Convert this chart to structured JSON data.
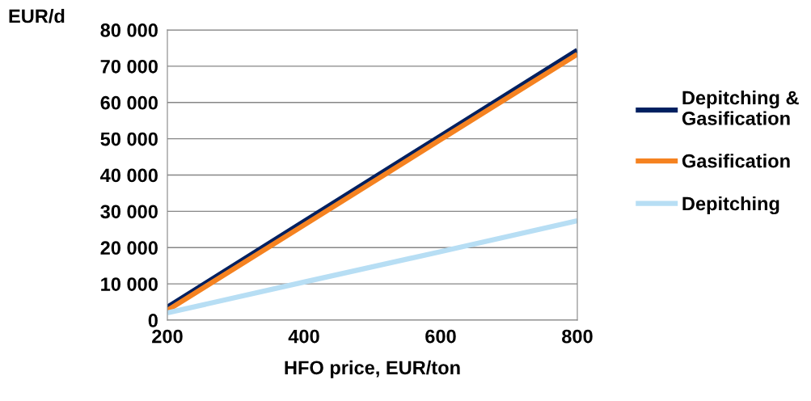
{
  "chart_data": {
    "type": "line",
    "ylabel": "EUR/d",
    "xlabel": "HFO price, EUR/ton",
    "x": [
      200,
      400,
      600,
      800
    ],
    "series": [
      {
        "name": "Depitching &\nGasification",
        "color": "#002060",
        "values": [
          3600,
          27200,
          50800,
          74400
        ]
      },
      {
        "name": "Gasification",
        "color": "#f58220",
        "values": [
          2700,
          26200,
          49800,
          73300
        ]
      },
      {
        "name": "Depitching",
        "color": "#b7def4",
        "values": [
          2000,
          10500,
          18900,
          27400
        ]
      }
    ],
    "xlim": [
      200,
      800
    ],
    "xticks": [
      200,
      400,
      600,
      800
    ],
    "ylim": [
      0,
      80000
    ],
    "yticks": [
      {
        "value": 0,
        "label": "0"
      },
      {
        "value": 10000,
        "label": "10 000"
      },
      {
        "value": 20000,
        "label": "20 000"
      },
      {
        "value": 30000,
        "label": "30 000"
      },
      {
        "value": 40000,
        "label": "40 000"
      },
      {
        "value": 50000,
        "label": "50 000"
      },
      {
        "value": 60000,
        "label": "60 000"
      },
      {
        "value": 70000,
        "label": "70 000"
      },
      {
        "value": 80000,
        "label": "80 000"
      }
    ],
    "grid": "y",
    "legend": "right",
    "marker": "none",
    "line_style": "solid"
  }
}
